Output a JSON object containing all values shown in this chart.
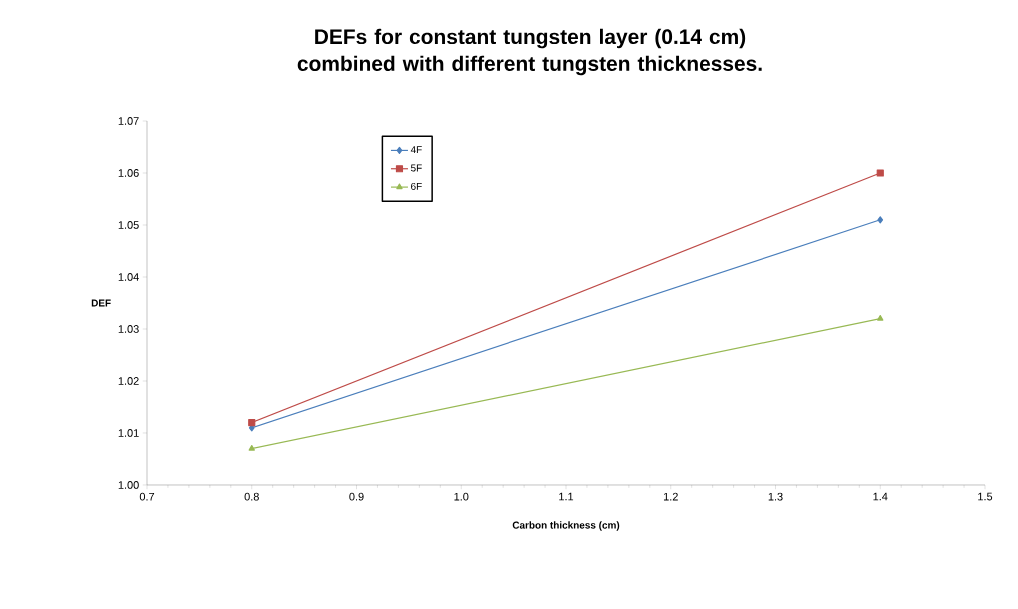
{
  "chart_data": {
    "type": "line",
    "title": "DEFs for constant tungsten layer (0.14 cm) combined with different tungsten thicknesses.",
    "xlabel": "Carbon thickness (cm)",
    "ylabel": "DEF",
    "x": [
      0.8,
      1.4
    ],
    "series": [
      {
        "name": "4F",
        "color": "#4a7ebb",
        "marker": "diamond",
        "values": [
          1.011,
          1.051
        ]
      },
      {
        "name": "5F",
        "color": "#be4b48",
        "marker": "square",
        "values": [
          1.012,
          1.06
        ]
      },
      {
        "name": "6F",
        "color": "#98b954",
        "marker": "triangle",
        "values": [
          1.007,
          1.032
        ]
      }
    ],
    "xlim": [
      0.7,
      1.5
    ],
    "xticks": [
      0.7,
      0.8,
      0.9,
      {
        "value": 1.0,
        "label": "1.0"
      },
      1.1,
      1.2,
      1.3,
      1.4,
      1.5
    ],
    "ylim": [
      1.0,
      1.07
    ],
    "yticks": [
      {
        "value": 1.0,
        "label": "1.00"
      },
      1.01,
      1.02,
      1.03,
      1.04,
      1.05,
      1.06,
      1.07
    ],
    "grid": false,
    "legend": "top left",
    "line_style": "solid"
  }
}
